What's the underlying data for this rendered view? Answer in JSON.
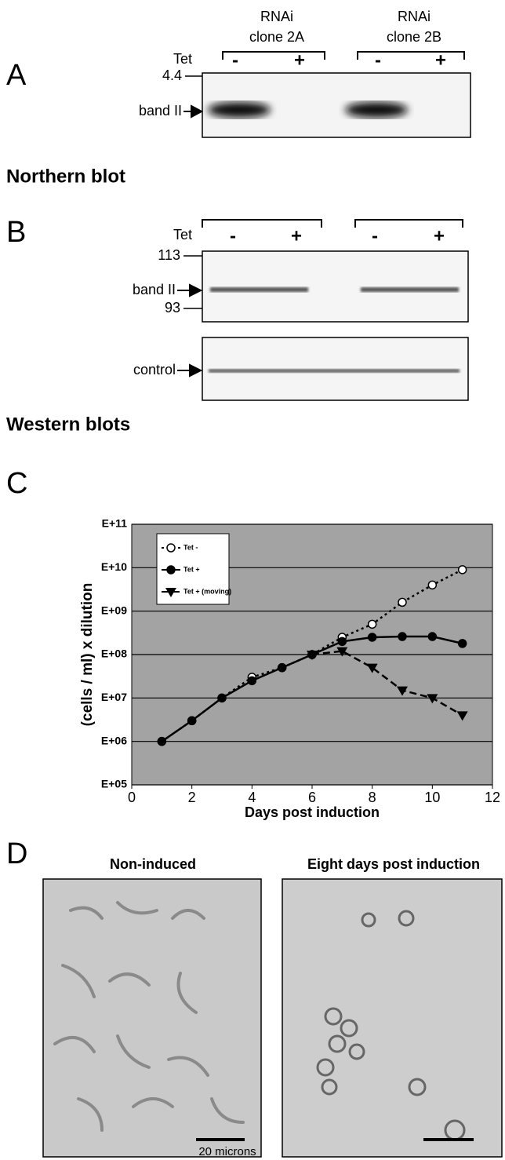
{
  "panel_a": {
    "letter": "A",
    "clones": [
      {
        "line1": "RNAi",
        "line2": "clone 2A"
      },
      {
        "line1": "RNAi",
        "line2": "clone 2B"
      }
    ],
    "tet": "Tet",
    "signs": [
      "-",
      "+",
      "-",
      "+"
    ],
    "marker": "4.4",
    "band": "band II",
    "caption": "Northern blot"
  },
  "panel_b": {
    "letter": "B",
    "tet": "Tet",
    "signs": [
      "-",
      "+",
      "-",
      "+"
    ],
    "markers": [
      "113",
      "93"
    ],
    "band": "band II",
    "control": "control",
    "caption": "Western blots"
  },
  "panel_c": {
    "letter": "C"
  },
  "chart_data": {
    "type": "line",
    "y_label": "(cells / ml) x dilution",
    "x_label": "Days post induction",
    "x": [
      1,
      2,
      3,
      4,
      5,
      6,
      7,
      8,
      9,
      10,
      11
    ],
    "series": [
      {
        "name": "Tet -",
        "color": "#000000",
        "marker": "open-circle",
        "line_style": "dotted",
        "values": [
          1000000.0,
          3000000.0,
          10000000.0,
          30000000.0,
          50000000.0,
          100000000.0,
          250000000.0,
          500000000.0,
          1600000000.0,
          4000000000.0,
          9000000000.0
        ]
      },
      {
        "name": "Tet +",
        "color": "#000000",
        "marker": "circle",
        "line_style": "solid",
        "values": [
          1000000.0,
          3000000.0,
          10000000.0,
          25000000.0,
          50000000.0,
          100000000.0,
          200000000.0,
          250000000.0,
          260000000.0,
          260000000.0,
          180000000.0
        ]
      },
      {
        "name": "Tet + (moving)",
        "color": "#000000",
        "marker": "triangle",
        "line_style": "dashed",
        "values": [
          null,
          null,
          null,
          null,
          null,
          100000000.0,
          120000000.0,
          50000000.0,
          15000000.0,
          10000000.0,
          4000000.0
        ]
      }
    ],
    "xlim": [
      0,
      12
    ],
    "xticks": [
      0,
      2,
      4,
      6,
      8,
      10,
      12
    ],
    "ylim": [
      100000.0,
      100000000000.0
    ],
    "log_y": true,
    "yticks": [
      {
        "value": 100000.0,
        "label": "E+05"
      },
      {
        "value": 1000000.0,
        "label": "E+06"
      },
      {
        "value": 10000000.0,
        "label": "E+07"
      },
      {
        "value": 100000000.0,
        "label": "E+08"
      },
      {
        "value": 1000000000.0,
        "label": "E+09"
      },
      {
        "value": 10000000000.0,
        "label": "E+10"
      },
      {
        "value": 100000000000.0,
        "label": "E+11"
      }
    ],
    "grid": true,
    "background": "#a3a3a3",
    "legend": "upper left"
  },
  "panel_d": {
    "letter": "D",
    "images": [
      {
        "title": "Non-induced",
        "scale_label": "20 microns"
      },
      {
        "title": "Eight days post induction"
      }
    ]
  }
}
